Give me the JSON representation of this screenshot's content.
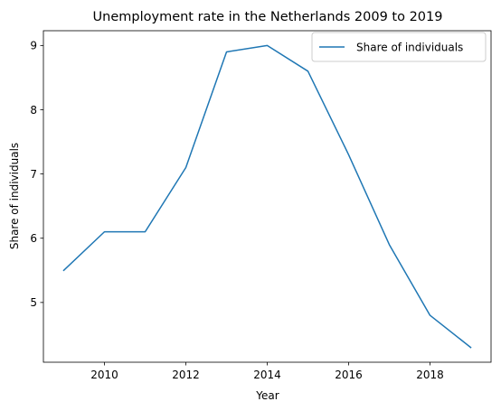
{
  "chart_data": {
    "type": "line",
    "title": "Unemployment rate in the Netherlands 2009 to 2019",
    "xlabel": "Year",
    "ylabel": "Share of individuals",
    "x": [
      2009,
      2010,
      2011,
      2012,
      2013,
      2014,
      2015,
      2016,
      2017,
      2018,
      2019
    ],
    "series": [
      {
        "name": "Share of individuals",
        "values": [
          5.5,
          6.1,
          6.1,
          7.1,
          8.9,
          9.0,
          8.6,
          7.3,
          5.9,
          4.8,
          4.3
        ],
        "color": "#1f77b4"
      }
    ],
    "xticks": [
      "2010",
      "2012",
      "2014",
      "2016",
      "2018"
    ],
    "yticks": [
      "5",
      "6",
      "7",
      "8",
      "9"
    ],
    "xlim": [
      2008.5,
      2019.5
    ],
    "ylim": [
      4.07,
      9.23
    ],
    "grid": false,
    "legend_position": "top-right"
  }
}
